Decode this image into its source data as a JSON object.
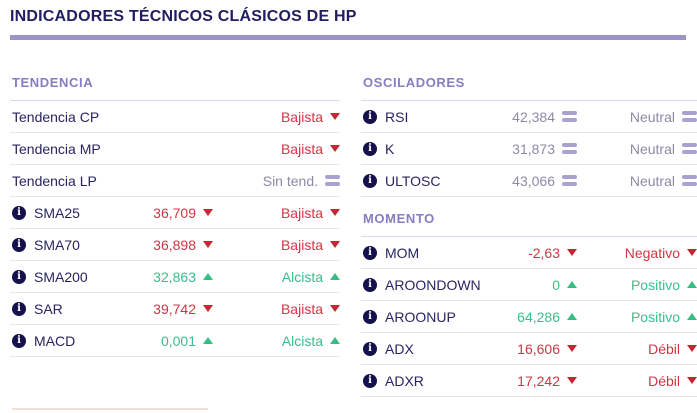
{
  "title": "INDICADORES TÉCNICOS CLÁSICOS DE HP",
  "colors": {
    "title_navy": "#221c60",
    "underline_purple": "#9c94c8",
    "section_header_purple": "#867dc2",
    "label_navy": "#29245f",
    "negative_red": "#ce3744",
    "positive_green": "#3bbd8b",
    "neutral_gray": "#8e8aa6"
  },
  "icons": {
    "info_glyph": "i"
  },
  "tendencia": {
    "header": "TENDENCIA",
    "rows": [
      {
        "label": "Tendencia CP",
        "value": "",
        "state": "Bajista",
        "sentiment": "down"
      },
      {
        "label": "Tendencia MP",
        "value": "",
        "state": "Bajista",
        "sentiment": "down"
      },
      {
        "label": "Tendencia LP",
        "value": "",
        "state": "Sin tend.",
        "sentiment": "neutral"
      },
      {
        "label": "SMA25",
        "value": "36,709",
        "state": "Bajista",
        "sentiment": "down"
      },
      {
        "label": "SMA70",
        "value": "36,898",
        "state": "Bajista",
        "sentiment": "down"
      },
      {
        "label": "SMA200",
        "value": "32,863",
        "state": "Alcista",
        "sentiment": "up"
      },
      {
        "label": "SAR",
        "value": "39,742",
        "state": "Bajista",
        "sentiment": "down"
      },
      {
        "label": "MACD",
        "value": "0,001",
        "state": "Alcista",
        "sentiment": "up"
      }
    ]
  },
  "osciladores": {
    "header": "OSCILADORES",
    "rows": [
      {
        "label": "RSI",
        "value": "42,384",
        "state": "Neutral",
        "sentiment": "neutral"
      },
      {
        "label": "K",
        "value": "31,873",
        "state": "Neutral",
        "sentiment": "neutral"
      },
      {
        "label": "ULTOSC",
        "value": "43,066",
        "state": "Neutral",
        "sentiment": "neutral"
      }
    ]
  },
  "momento": {
    "header": "MOMENTO",
    "rows": [
      {
        "label": "MOM",
        "value": "-2,63",
        "state": "Negativo",
        "sentiment": "down"
      },
      {
        "label": "AROONDOWN",
        "value": "0",
        "state": "Positivo",
        "sentiment": "up"
      },
      {
        "label": "AROONUP",
        "value": "64,286",
        "state": "Positivo",
        "sentiment": "up"
      },
      {
        "label": "ADX",
        "value": "16,606",
        "state": "Débil",
        "sentiment": "down"
      },
      {
        "label": "ADXR",
        "value": "17,242",
        "state": "Débil",
        "sentiment": "down"
      }
    ]
  }
}
